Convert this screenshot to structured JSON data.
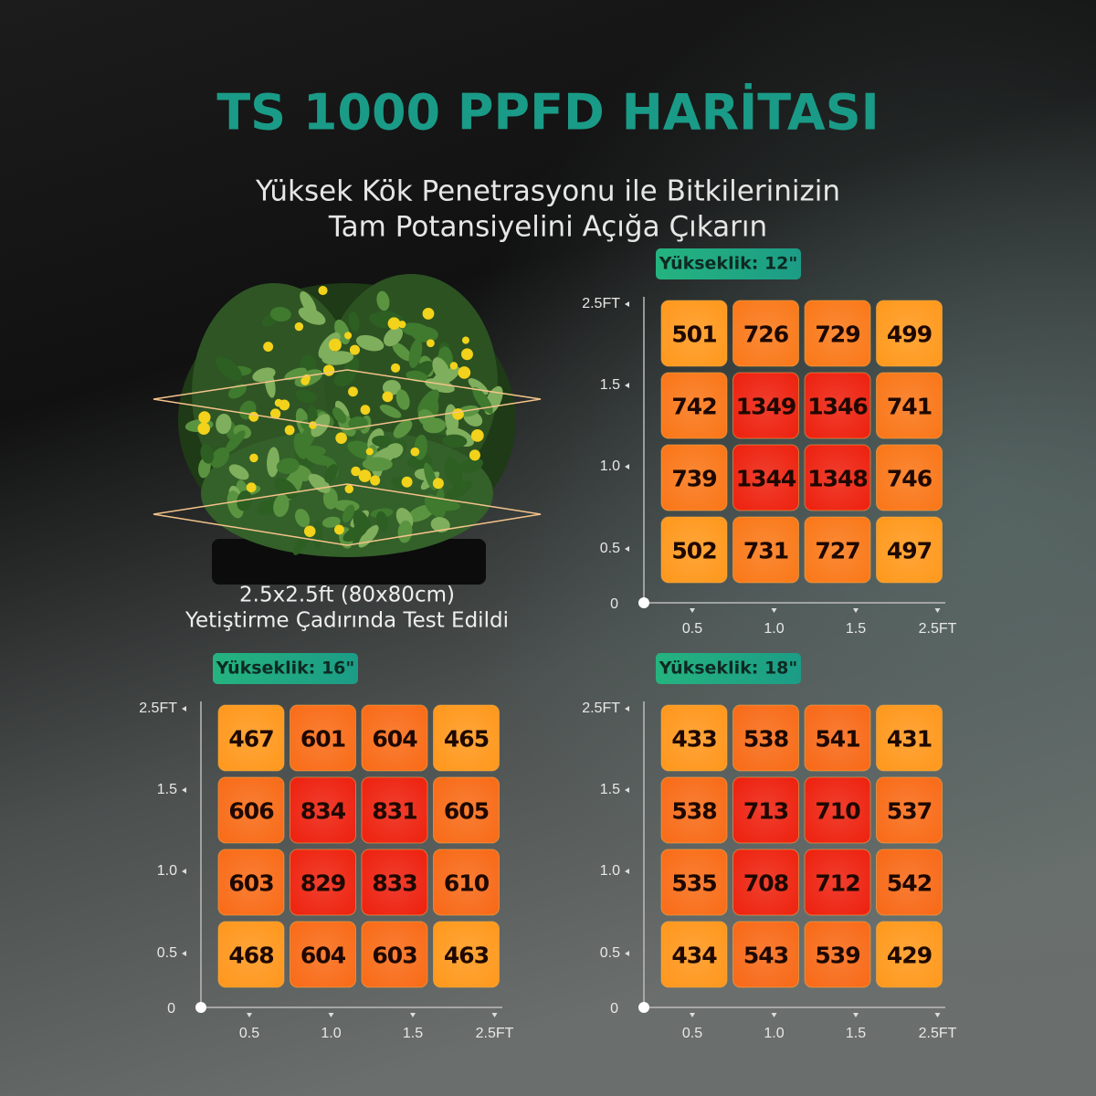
{
  "header": {
    "title": "TS 1000 PPFD HARİTASI",
    "subtitle": [
      "Yüksek Kök Penetrasyonu ile Bitkilerinizin",
      "Tam Potansiyelini Açığa Çıkarın"
    ]
  },
  "caption": [
    "2.5x2.5ft (80x80cm)",
    "Yetiştirme Çadırında Test Edildi"
  ],
  "chart_data": [
    {
      "type": "heatmap",
      "title": "Yükseklik: 12\"",
      "x_labels": [
        "0.5",
        "1.0",
        "1.5",
        "2.5FT"
      ],
      "y_labels": [
        "2.5FT",
        "1.5",
        "1.0",
        "0.5"
      ],
      "origin": "0",
      "colors": [
        "#ff9a1f",
        "#ee2412"
      ],
      "values": [
        [
          501,
          726,
          729,
          499
        ],
        [
          742,
          1349,
          1346,
          741
        ],
        [
          739,
          1344,
          1348,
          746
        ],
        [
          502,
          731,
          727,
          497
        ]
      ]
    },
    {
      "type": "heatmap",
      "title": "Yükseklik: 16\"",
      "x_labels": [
        "0.5",
        "1.0",
        "1.5",
        "2.5FT"
      ],
      "y_labels": [
        "2.5FT",
        "1.5",
        "1.0",
        "0.5"
      ],
      "origin": "0",
      "colors": [
        "#ff9a1f",
        "#ee2412"
      ],
      "values": [
        [
          467,
          601,
          604,
          465
        ],
        [
          606,
          834,
          831,
          605
        ],
        [
          603,
          829,
          833,
          610
        ],
        [
          468,
          604,
          603,
          463
        ]
      ]
    },
    {
      "type": "heatmap",
      "title": "Yükseklik: 18\"",
      "x_labels": [
        "0.5",
        "1.0",
        "1.5",
        "2.5FT"
      ],
      "y_labels": [
        "2.5FT",
        "1.5",
        "1.0",
        "0.5"
      ],
      "origin": "0",
      "colors": [
        "#ff9a1f",
        "#ee2412"
      ],
      "values": [
        [
          433,
          538,
          541,
          431
        ],
        [
          538,
          713,
          710,
          537
        ],
        [
          535,
          708,
          712,
          542
        ],
        [
          434,
          543,
          539,
          429
        ]
      ]
    }
  ]
}
